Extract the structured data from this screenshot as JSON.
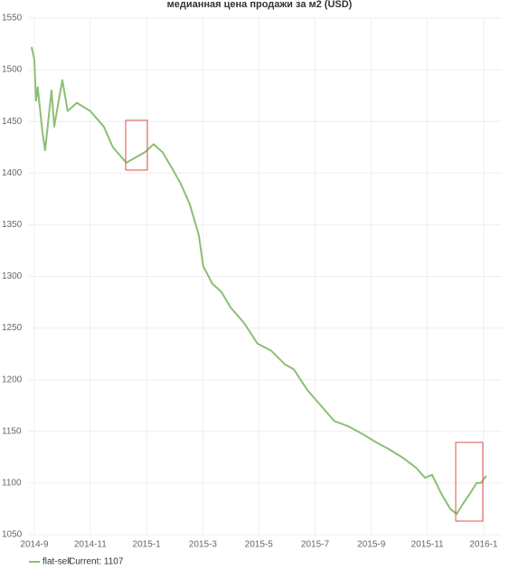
{
  "chart_data": {
    "type": "line",
    "title": "медианная цена продажи за м2 (USD)",
    "x": [
      2014.659,
      2014.667,
      2014.672,
      2014.677,
      2014.691,
      2014.699,
      2014.718,
      2014.726,
      2014.742,
      2014.75,
      2014.766,
      2014.793,
      2014.833,
      2014.873,
      2014.9,
      2014.94,
      2014.967,
      2014.994,
      2015.021,
      2015.048,
      2015.075,
      2015.101,
      2015.128,
      2015.155,
      2015.168,
      2015.195,
      2015.222,
      2015.249,
      2015.289,
      2015.329,
      2015.37,
      2015.41,
      2015.437,
      2015.477,
      2015.517,
      2015.557,
      2015.598,
      2015.638,
      2015.678,
      2015.718,
      2015.758,
      2015.799,
      2015.826,
      2015.847,
      2015.874,
      2015.901,
      2015.92,
      2015.939,
      2015.96,
      2015.979,
      2015.992,
      2016.008
    ],
    "series": [
      {
        "name": "flat-sell",
        "color": "#8cbf73",
        "values": [
          1522,
          1510,
          1470,
          1483,
          1440,
          1422,
          1480,
          1445,
          1475,
          1490,
          1460,
          1468,
          1460,
          1445,
          1425,
          1410,
          1415,
          1420,
          1428,
          1420,
          1405,
          1390,
          1370,
          1340,
          1310,
          1293,
          1285,
          1270,
          1255,
          1235,
          1228,
          1215,
          1210,
          1190,
          1175,
          1160,
          1155,
          1148,
          1140,
          1133,
          1125,
          1115,
          1105,
          1108,
          1090,
          1075,
          1070,
          1080,
          1090,
          1100,
          1100,
          1107
        ]
      }
    ],
    "legend_current": "Current: 1107",
    "xlim": [
      2014.651,
      2016.054
    ],
    "xticks": [
      {
        "value": 2014.667,
        "label": "2014-9"
      },
      {
        "value": 2014.833,
        "label": "2014-11"
      },
      {
        "value": 2015.0,
        "label": "2015-1"
      },
      {
        "value": 2015.167,
        "label": "2015-3"
      },
      {
        "value": 2015.333,
        "label": "2015-5"
      },
      {
        "value": 2015.5,
        "label": "2015-7"
      },
      {
        "value": 2015.667,
        "label": "2015-9"
      },
      {
        "value": 2015.833,
        "label": "2015-11"
      },
      {
        "value": 2016.0,
        "label": "2016-1"
      }
    ],
    "ylim": [
      1050,
      1550
    ],
    "yticks": [
      1050,
      1100,
      1150,
      1200,
      1250,
      1300,
      1350,
      1400,
      1450,
      1500,
      1550
    ],
    "grid": true
  }
}
